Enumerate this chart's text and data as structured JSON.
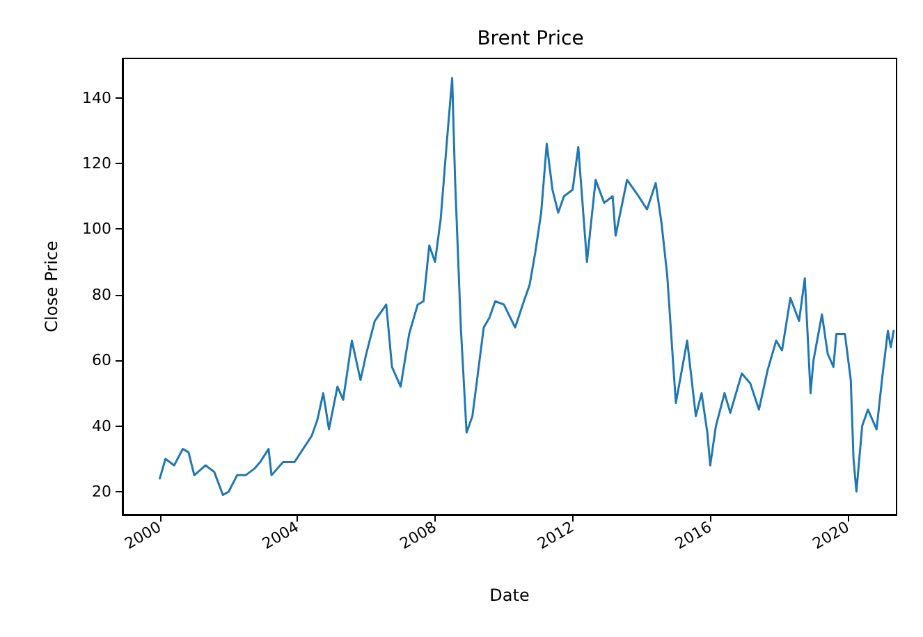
{
  "chart_data": {
    "type": "line",
    "title": "Brent Price",
    "xlabel": "Date",
    "ylabel": "Close Price",
    "x": [
      "2000-01",
      "2000-03",
      "2000-06",
      "2000-09",
      "2000-11",
      "2001-01",
      "2001-05",
      "2001-08",
      "2001-11",
      "2002-01",
      "2002-04",
      "2002-07",
      "2002-10",
      "2002-12",
      "2003-03",
      "2003-04",
      "2003-08",
      "2003-12",
      "2004-03",
      "2004-06",
      "2004-08",
      "2004-10",
      "2004-12",
      "2005-03",
      "2005-05",
      "2005-08",
      "2005-11",
      "2006-01",
      "2006-04",
      "2006-08",
      "2006-10",
      "2007-01",
      "2007-04",
      "2007-07",
      "2007-09",
      "2007-11",
      "2008-01",
      "2008-03",
      "2008-05",
      "2008-07",
      "2008-08",
      "2008-10",
      "2008-12",
      "2009-02",
      "2009-06",
      "2009-08",
      "2009-10",
      "2010-01",
      "2010-05",
      "2010-08",
      "2010-10",
      "2010-12",
      "2011-02",
      "2011-04",
      "2011-06",
      "2011-08",
      "2011-10",
      "2012-01",
      "2012-03",
      "2012-06",
      "2012-09",
      "2012-12",
      "2013-03",
      "2013-04",
      "2013-08",
      "2013-12",
      "2014-03",
      "2014-06",
      "2014-08",
      "2014-10",
      "2014-12",
      "2015-01",
      "2015-05",
      "2015-08",
      "2015-10",
      "2015-12",
      "2016-01",
      "2016-03",
      "2016-06",
      "2016-08",
      "2016-12",
      "2017-03",
      "2017-06",
      "2017-09",
      "2017-12",
      "2018-02",
      "2018-05",
      "2018-08",
      "2018-10",
      "2018-12",
      "2019-01",
      "2019-04",
      "2019-06",
      "2019-08",
      "2019-09",
      "2019-12",
      "2020-02",
      "2020-03",
      "2020-04",
      "2020-06",
      "2020-08",
      "2020-11",
      "2021-01",
      "2021-03",
      "2021-04",
      "2021-05"
    ],
    "series": [
      {
        "color": "#1f77b4",
        "values": [
          24,
          30,
          28,
          33,
          32,
          25,
          28,
          26,
          19,
          20,
          25,
          25,
          27,
          29,
          33,
          25,
          29,
          29,
          33,
          37,
          42,
          50,
          39,
          52,
          48,
          66,
          54,
          62,
          72,
          77,
          58,
          52,
          68,
          77,
          78,
          95,
          90,
          103,
          125,
          146,
          115,
          70,
          38,
          43,
          70,
          73,
          78,
          77,
          70,
          78,
          83,
          93,
          105,
          126,
          112,
          105,
          110,
          112,
          125,
          90,
          115,
          108,
          110,
          98,
          115,
          110,
          106,
          114,
          102,
          86,
          60,
          47,
          66,
          43,
          50,
          38,
          28,
          40,
          50,
          44,
          56,
          53,
          45,
          57,
          66,
          63,
          79,
          72,
          85,
          50,
          60,
          74,
          62,
          58,
          68,
          68,
          54,
          30,
          20,
          40,
          45,
          39,
          55,
          69,
          64,
          69
        ]
      }
    ],
    "xlim": [
      "1998-12",
      "2021-06"
    ],
    "xticks": [
      "2000",
      "2004",
      "2008",
      "2012",
      "2016",
      "2020"
    ],
    "ylim": [
      13,
      152
    ],
    "yticks": [
      20,
      40,
      60,
      80,
      100,
      120,
      140
    ],
    "grid": false,
    "marker": "none",
    "line_style": "solid"
  }
}
